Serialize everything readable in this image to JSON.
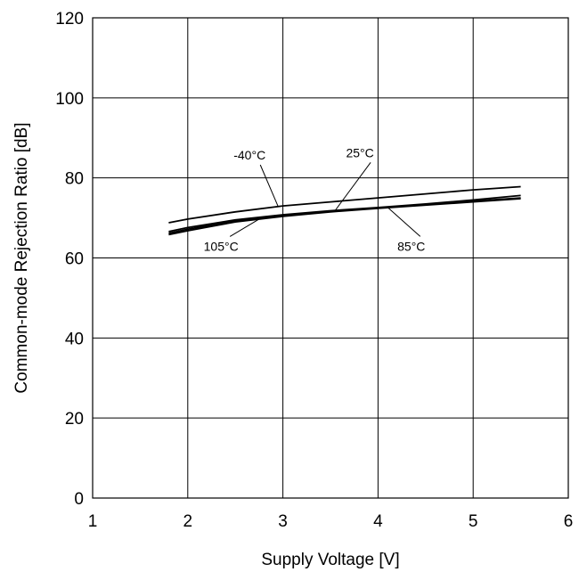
{
  "chart_data": {
    "type": "line",
    "xlabel": "Supply Voltage [V]",
    "ylabel": "Common-mode Rejection Ratio [dB]",
    "xlim": [
      1,
      6
    ],
    "ylim": [
      0,
      120
    ],
    "xticks": [
      "1",
      "2",
      "3",
      "4",
      "5",
      "6"
    ],
    "yticks": [
      "0",
      "20",
      "40",
      "60",
      "80",
      "100",
      "120"
    ],
    "grid": true,
    "series": [
      {
        "name": "-40°C",
        "x": [
          1.8,
          2.0,
          2.5,
          3.0,
          3.5,
          4.0,
          4.5,
          5.0,
          5.5
        ],
        "y": [
          68.8,
          69.7,
          71.5,
          73.0,
          74.0,
          75.0,
          76.0,
          77.0,
          77.8
        ]
      },
      {
        "name": "25°C",
        "x": [
          1.8,
          2.0,
          2.5,
          3.0,
          3.5,
          4.0,
          4.5,
          5.0,
          5.5
        ],
        "y": [
          66.6,
          67.6,
          69.5,
          70.8,
          71.8,
          72.6,
          73.5,
          74.5,
          75.6
        ]
      },
      {
        "name": "85°C",
        "x": [
          1.8,
          2.0,
          2.5,
          3.0,
          3.5,
          4.0,
          4.5,
          5.0,
          5.5
        ],
        "y": [
          66.2,
          67.2,
          69.2,
          70.6,
          71.6,
          72.5,
          73.3,
          74.2,
          75.0
        ]
      },
      {
        "name": "105°C",
        "x": [
          1.8,
          2.0,
          2.5,
          3.0,
          3.5,
          4.0,
          4.5,
          5.0,
          5.5
        ],
        "y": [
          65.8,
          66.8,
          69.0,
          70.4,
          71.5,
          72.4,
          73.2,
          74.0,
          74.8
        ]
      }
    ],
    "annotations": [
      {
        "text": "-40°C",
        "series": "-40°C",
        "at_x": 2.95,
        "tx": 2.65,
        "ty": 84.6
      },
      {
        "text": "25°C",
        "series": "25°C",
        "at_x": 3.55,
        "tx": 3.81,
        "ty": 85.2
      },
      {
        "text": "85°C",
        "series": "85°C",
        "at_x": 4.1,
        "tx": 4.35,
        "ty": 61.8
      },
      {
        "text": "105°C",
        "series": "105°C",
        "at_x": 2.75,
        "tx": 2.35,
        "ty": 61.8
      }
    ]
  }
}
